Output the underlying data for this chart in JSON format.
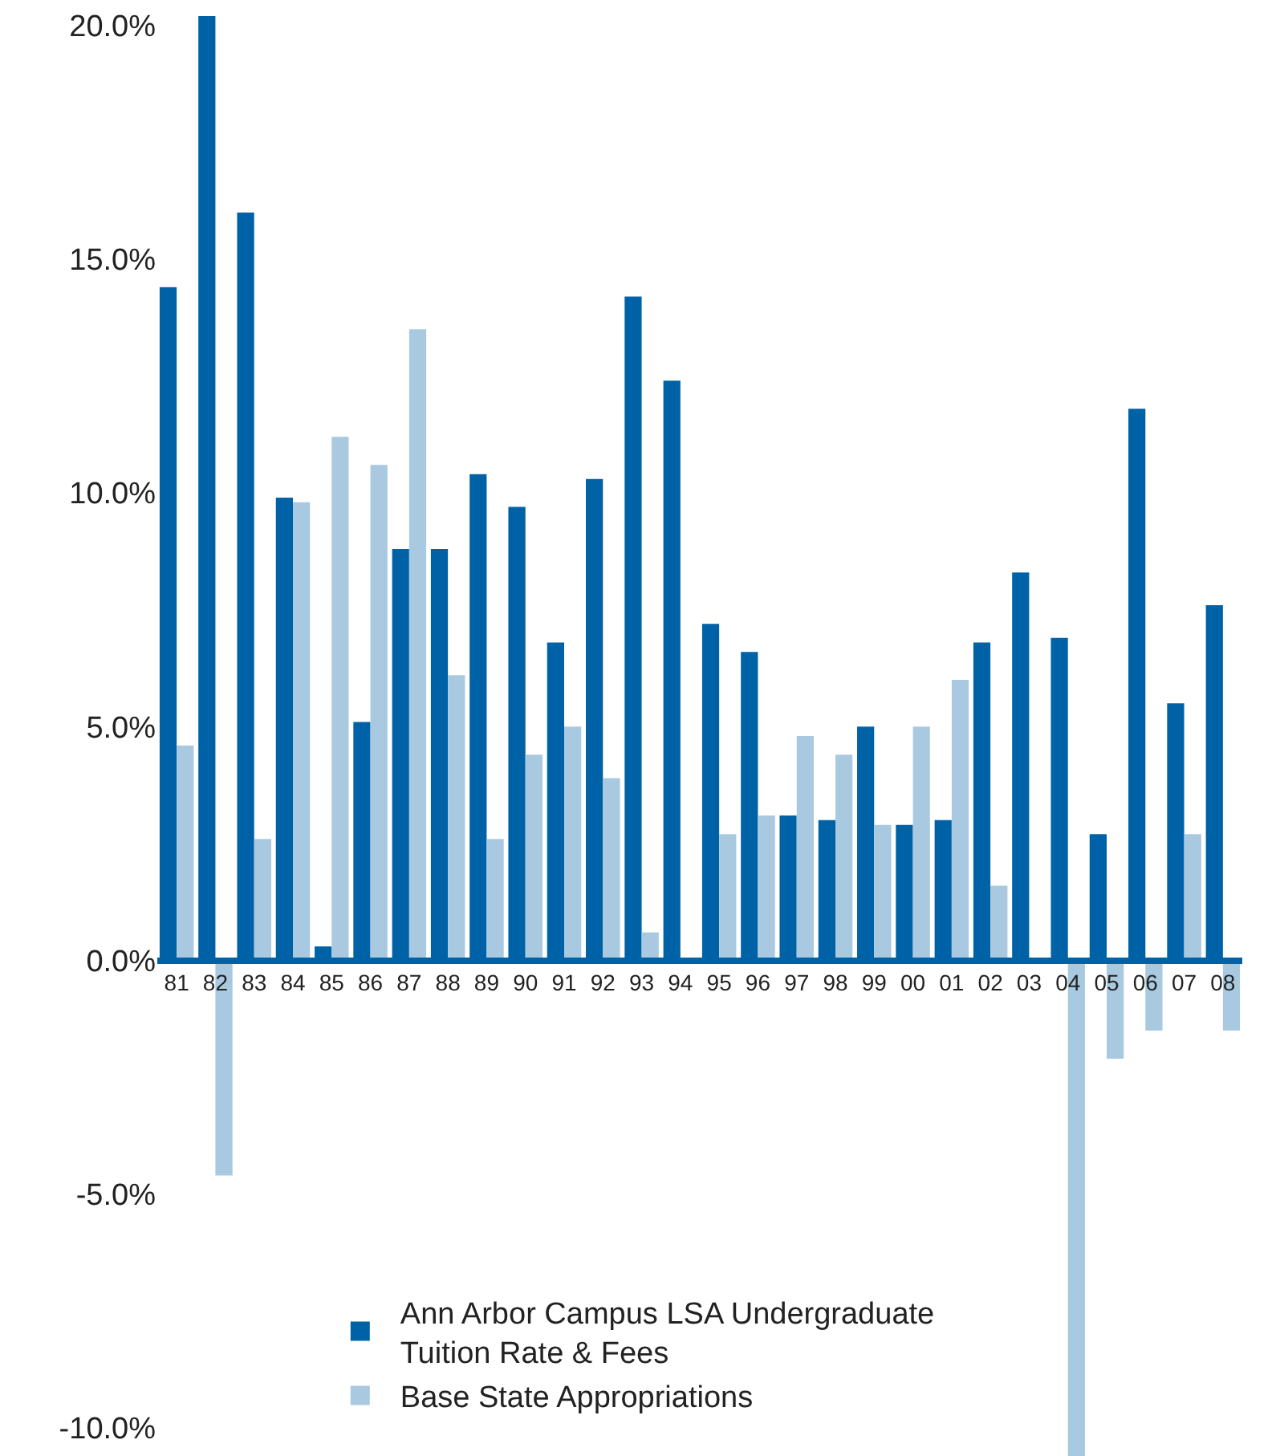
{
  "chart_data": {
    "type": "bar",
    "categories": [
      "81",
      "82",
      "83",
      "84",
      "85",
      "86",
      "87",
      "88",
      "89",
      "90",
      "91",
      "92",
      "93",
      "94",
      "95",
      "96",
      "97",
      "98",
      "99",
      "00",
      "01",
      "02",
      "03",
      "04",
      "05",
      "06",
      "07",
      "08"
    ],
    "series": [
      {
        "name": "Ann Arbor Campus LSA Undergraduate Tuition Rate & Fees",
        "color": "#0062a6",
        "values": [
          14.4,
          20.2,
          16.0,
          9.9,
          0.3,
          5.1,
          8.8,
          8.8,
          10.4,
          9.7,
          6.8,
          10.3,
          14.2,
          12.4,
          7.2,
          6.6,
          3.1,
          3.0,
          5.0,
          2.9,
          3.0,
          6.8,
          8.3,
          6.9,
          2.7,
          11.8,
          5.5,
          7.6
        ]
      },
      {
        "name": "Base State Appropriations",
        "color": "#a8c9e0",
        "values": [
          4.6,
          -4.6,
          2.6,
          9.8,
          11.2,
          10.6,
          13.5,
          6.1,
          2.6,
          4.4,
          5.0,
          3.9,
          0.6,
          null,
          2.7,
          3.1,
          4.8,
          4.4,
          2.9,
          5.0,
          6.0,
          1.6,
          null,
          -10.6,
          -2.1,
          -1.5,
          2.7,
          -1.5
        ]
      }
    ],
    "ylim": [
      -10.6,
      20.2
    ],
    "yticks": [
      {
        "value": -10,
        "label": "-10.0%"
      },
      {
        "value": -5,
        "label": "-5.0%"
      },
      {
        "value": 0,
        "label": "0.0%"
      },
      {
        "value": 5,
        "label": "5.0%"
      },
      {
        "value": 10,
        "label": "10.0%"
      },
      {
        "value": 15,
        "label": "15.0%"
      },
      {
        "value": 20,
        "label": "20.0%"
      }
    ],
    "grid": false,
    "legend": "bottom"
  }
}
